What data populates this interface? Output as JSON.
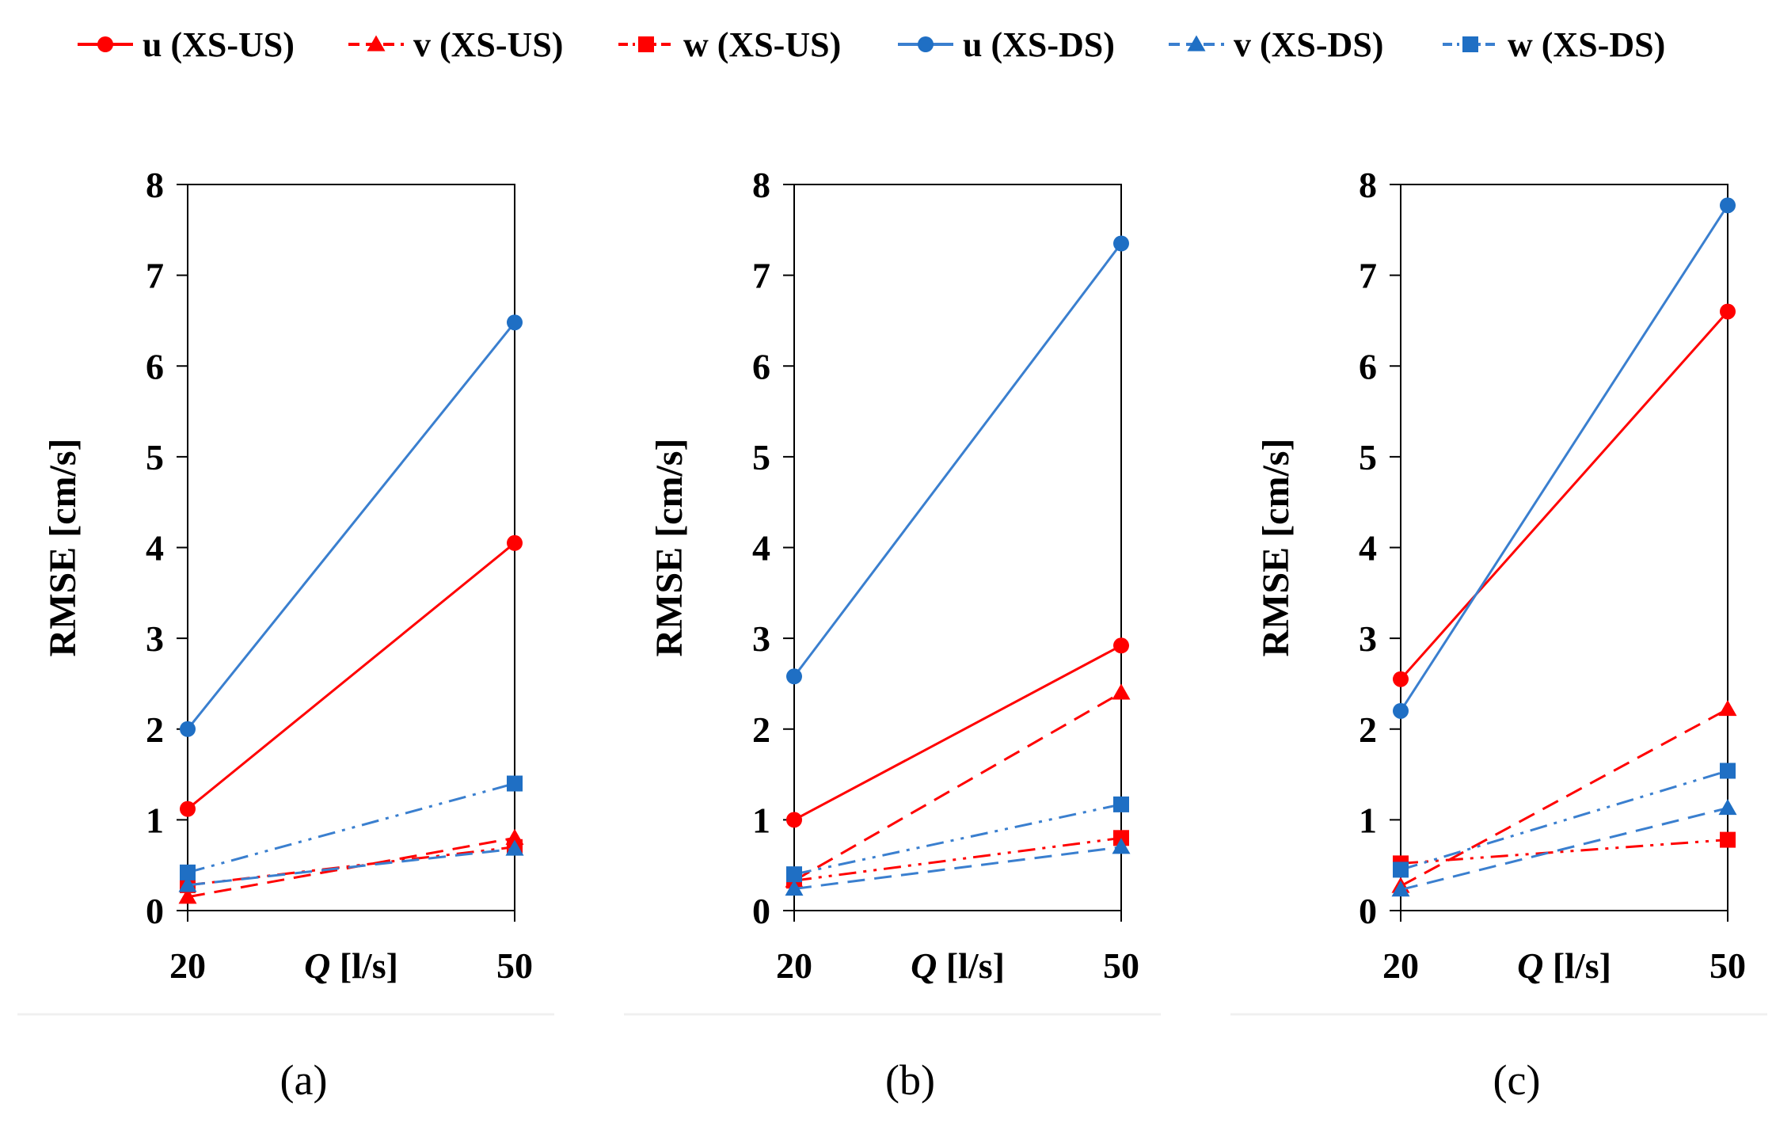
{
  "colors": {
    "red": "#ff0000",
    "blue": "#3a7fcf",
    "blue_marker": "#1f6fc4",
    "frame": "#000000"
  },
  "legend": [
    {
      "label": "u (XS-US)",
      "color": "#ff0000",
      "marker": "circle",
      "dash": "solid"
    },
    {
      "label": "v (XS-US)",
      "color": "#ff0000",
      "marker": "triangle",
      "dash": "dashed"
    },
    {
      "label": "w (XS-US)",
      "color": "#ff0000",
      "marker": "square",
      "dash": "dashdotdot"
    },
    {
      "label": "u (XS-DS)",
      "color": "#3a7fcf",
      "marker": "circle",
      "dash": "solid"
    },
    {
      "label": "v (XS-DS)",
      "color": "#3a7fcf",
      "marker": "triangle",
      "dash": "dashed"
    },
    {
      "label": "w (XS-DS)",
      "color": "#3a7fcf",
      "marker": "square",
      "dash": "dashdotdot"
    }
  ],
  "chart_data": [
    {
      "type": "line",
      "panel_label": "(a)",
      "panel_letter": "a",
      "ylabel": "RMSE [cm/s]",
      "xlabel_var": "Q",
      "xlabel_unit": " [l/s]",
      "x": [
        20,
        50
      ],
      "x_tick_labels": [
        "20",
        "50"
      ],
      "ylim": [
        0,
        8
      ],
      "yticks": [
        0,
        1,
        2,
        3,
        4,
        5,
        6,
        7,
        8
      ],
      "series": [
        {
          "name": "u (XS-US)",
          "values": [
            1.12,
            4.05
          ]
        },
        {
          "name": "v (XS-US)",
          "values": [
            0.15,
            0.8
          ]
        },
        {
          "name": "w (XS-US)",
          "values": [
            0.28,
            0.7
          ]
        },
        {
          "name": "u (XS-DS)",
          "values": [
            2.0,
            6.48
          ]
        },
        {
          "name": "v (XS-DS)",
          "values": [
            0.28,
            0.68
          ]
        },
        {
          "name": "w (XS-DS)",
          "values": [
            0.42,
            1.4
          ]
        }
      ]
    },
    {
      "type": "line",
      "panel_label": "(b)",
      "panel_letter": "b",
      "ylabel": "RMSE [cm/s]",
      "xlabel_var": "Q",
      "xlabel_unit": " [l/s]",
      "x": [
        20,
        50
      ],
      "x_tick_labels": [
        "20",
        "50"
      ],
      "ylim": [
        0,
        8
      ],
      "yticks": [
        0,
        1,
        2,
        3,
        4,
        5,
        6,
        7,
        8
      ],
      "series": [
        {
          "name": "u (XS-US)",
          "values": [
            1.0,
            2.92
          ]
        },
        {
          "name": "v (XS-US)",
          "values": [
            0.33,
            2.4
          ]
        },
        {
          "name": "w (XS-US)",
          "values": [
            0.33,
            0.8
          ]
        },
        {
          "name": "u (XS-DS)",
          "values": [
            2.58,
            7.35
          ]
        },
        {
          "name": "v (XS-DS)",
          "values": [
            0.24,
            0.7
          ]
        },
        {
          "name": "w (XS-DS)",
          "values": [
            0.4,
            1.17
          ]
        }
      ]
    },
    {
      "type": "line",
      "panel_label": "(c)",
      "panel_letter": "c",
      "ylabel": "RMSE [cm/s]",
      "xlabel_var": "Q",
      "xlabel_unit": " [l/s]",
      "x": [
        20,
        50
      ],
      "x_tick_labels": [
        "20",
        "50"
      ],
      "ylim": [
        0,
        8
      ],
      "yticks": [
        0,
        1,
        2,
        3,
        4,
        5,
        6,
        7,
        8
      ],
      "series": [
        {
          "name": "u (XS-US)",
          "values": [
            2.55,
            6.6
          ]
        },
        {
          "name": "v (XS-US)",
          "values": [
            0.27,
            2.22
          ]
        },
        {
          "name": "w (XS-US)",
          "values": [
            0.52,
            0.78
          ]
        },
        {
          "name": "u (XS-DS)",
          "values": [
            2.2,
            7.77
          ]
        },
        {
          "name": "v (XS-DS)",
          "values": [
            0.23,
            1.13
          ]
        },
        {
          "name": "w (XS-DS)",
          "values": [
            0.45,
            1.54
          ]
        }
      ]
    }
  ]
}
